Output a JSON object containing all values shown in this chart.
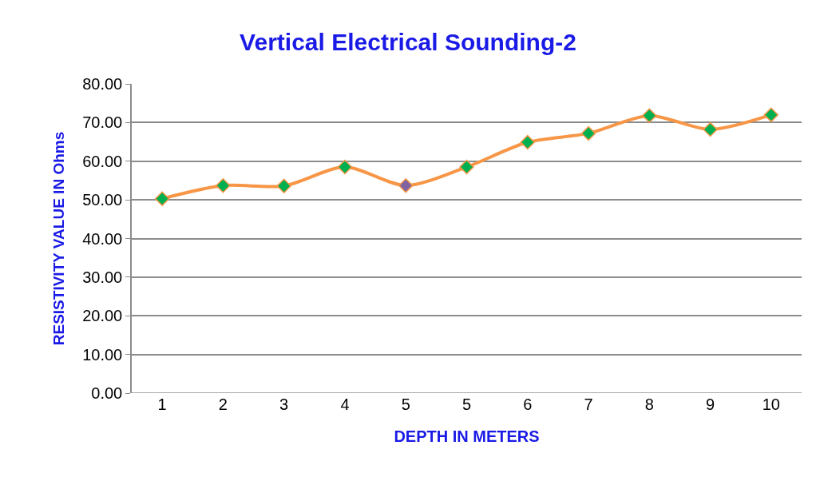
{
  "chart_data": {
    "type": "line",
    "title": "Vertical Electrical Sounding-2",
    "xlabel": "DEPTH IN METERS",
    "ylabel": "RESISTIVITY VALUE IN Ohms",
    "categories": [
      "1",
      "2",
      "3",
      "4",
      "5",
      "5",
      "6",
      "7",
      "8",
      "9",
      "10"
    ],
    "series": [
      {
        "color": "#f79646",
        "values": [
          50.3,
          53.7,
          53.6,
          58.5,
          53.7,
          58.5,
          64.9,
          67.2,
          71.8,
          68.2,
          72.0
        ],
        "colors": [
          "#00b050",
          "#00b050",
          "#00b050",
          "#00b050",
          "#8064a2",
          "#00b050",
          "#00b050",
          "#00b050",
          "#00b050",
          "#00b050",
          "#00b050"
        ]
      }
    ],
    "ylim": [
      0,
      80
    ],
    "yticks": [
      {
        "value": 0,
        "label": "0.00"
      },
      {
        "value": 10,
        "label": "10.00"
      },
      {
        "value": 20,
        "label": "20.00"
      },
      {
        "value": 30,
        "label": "30.00"
      },
      {
        "value": 40,
        "label": "40.00"
      },
      {
        "value": 50,
        "label": "50.00"
      },
      {
        "value": 60,
        "label": "60.00"
      },
      {
        "value": 70,
        "label": "70.00"
      },
      {
        "value": 80,
        "label": "80.00"
      }
    ],
    "grid": "y",
    "marker": "diamond",
    "line_style": "solid"
  }
}
